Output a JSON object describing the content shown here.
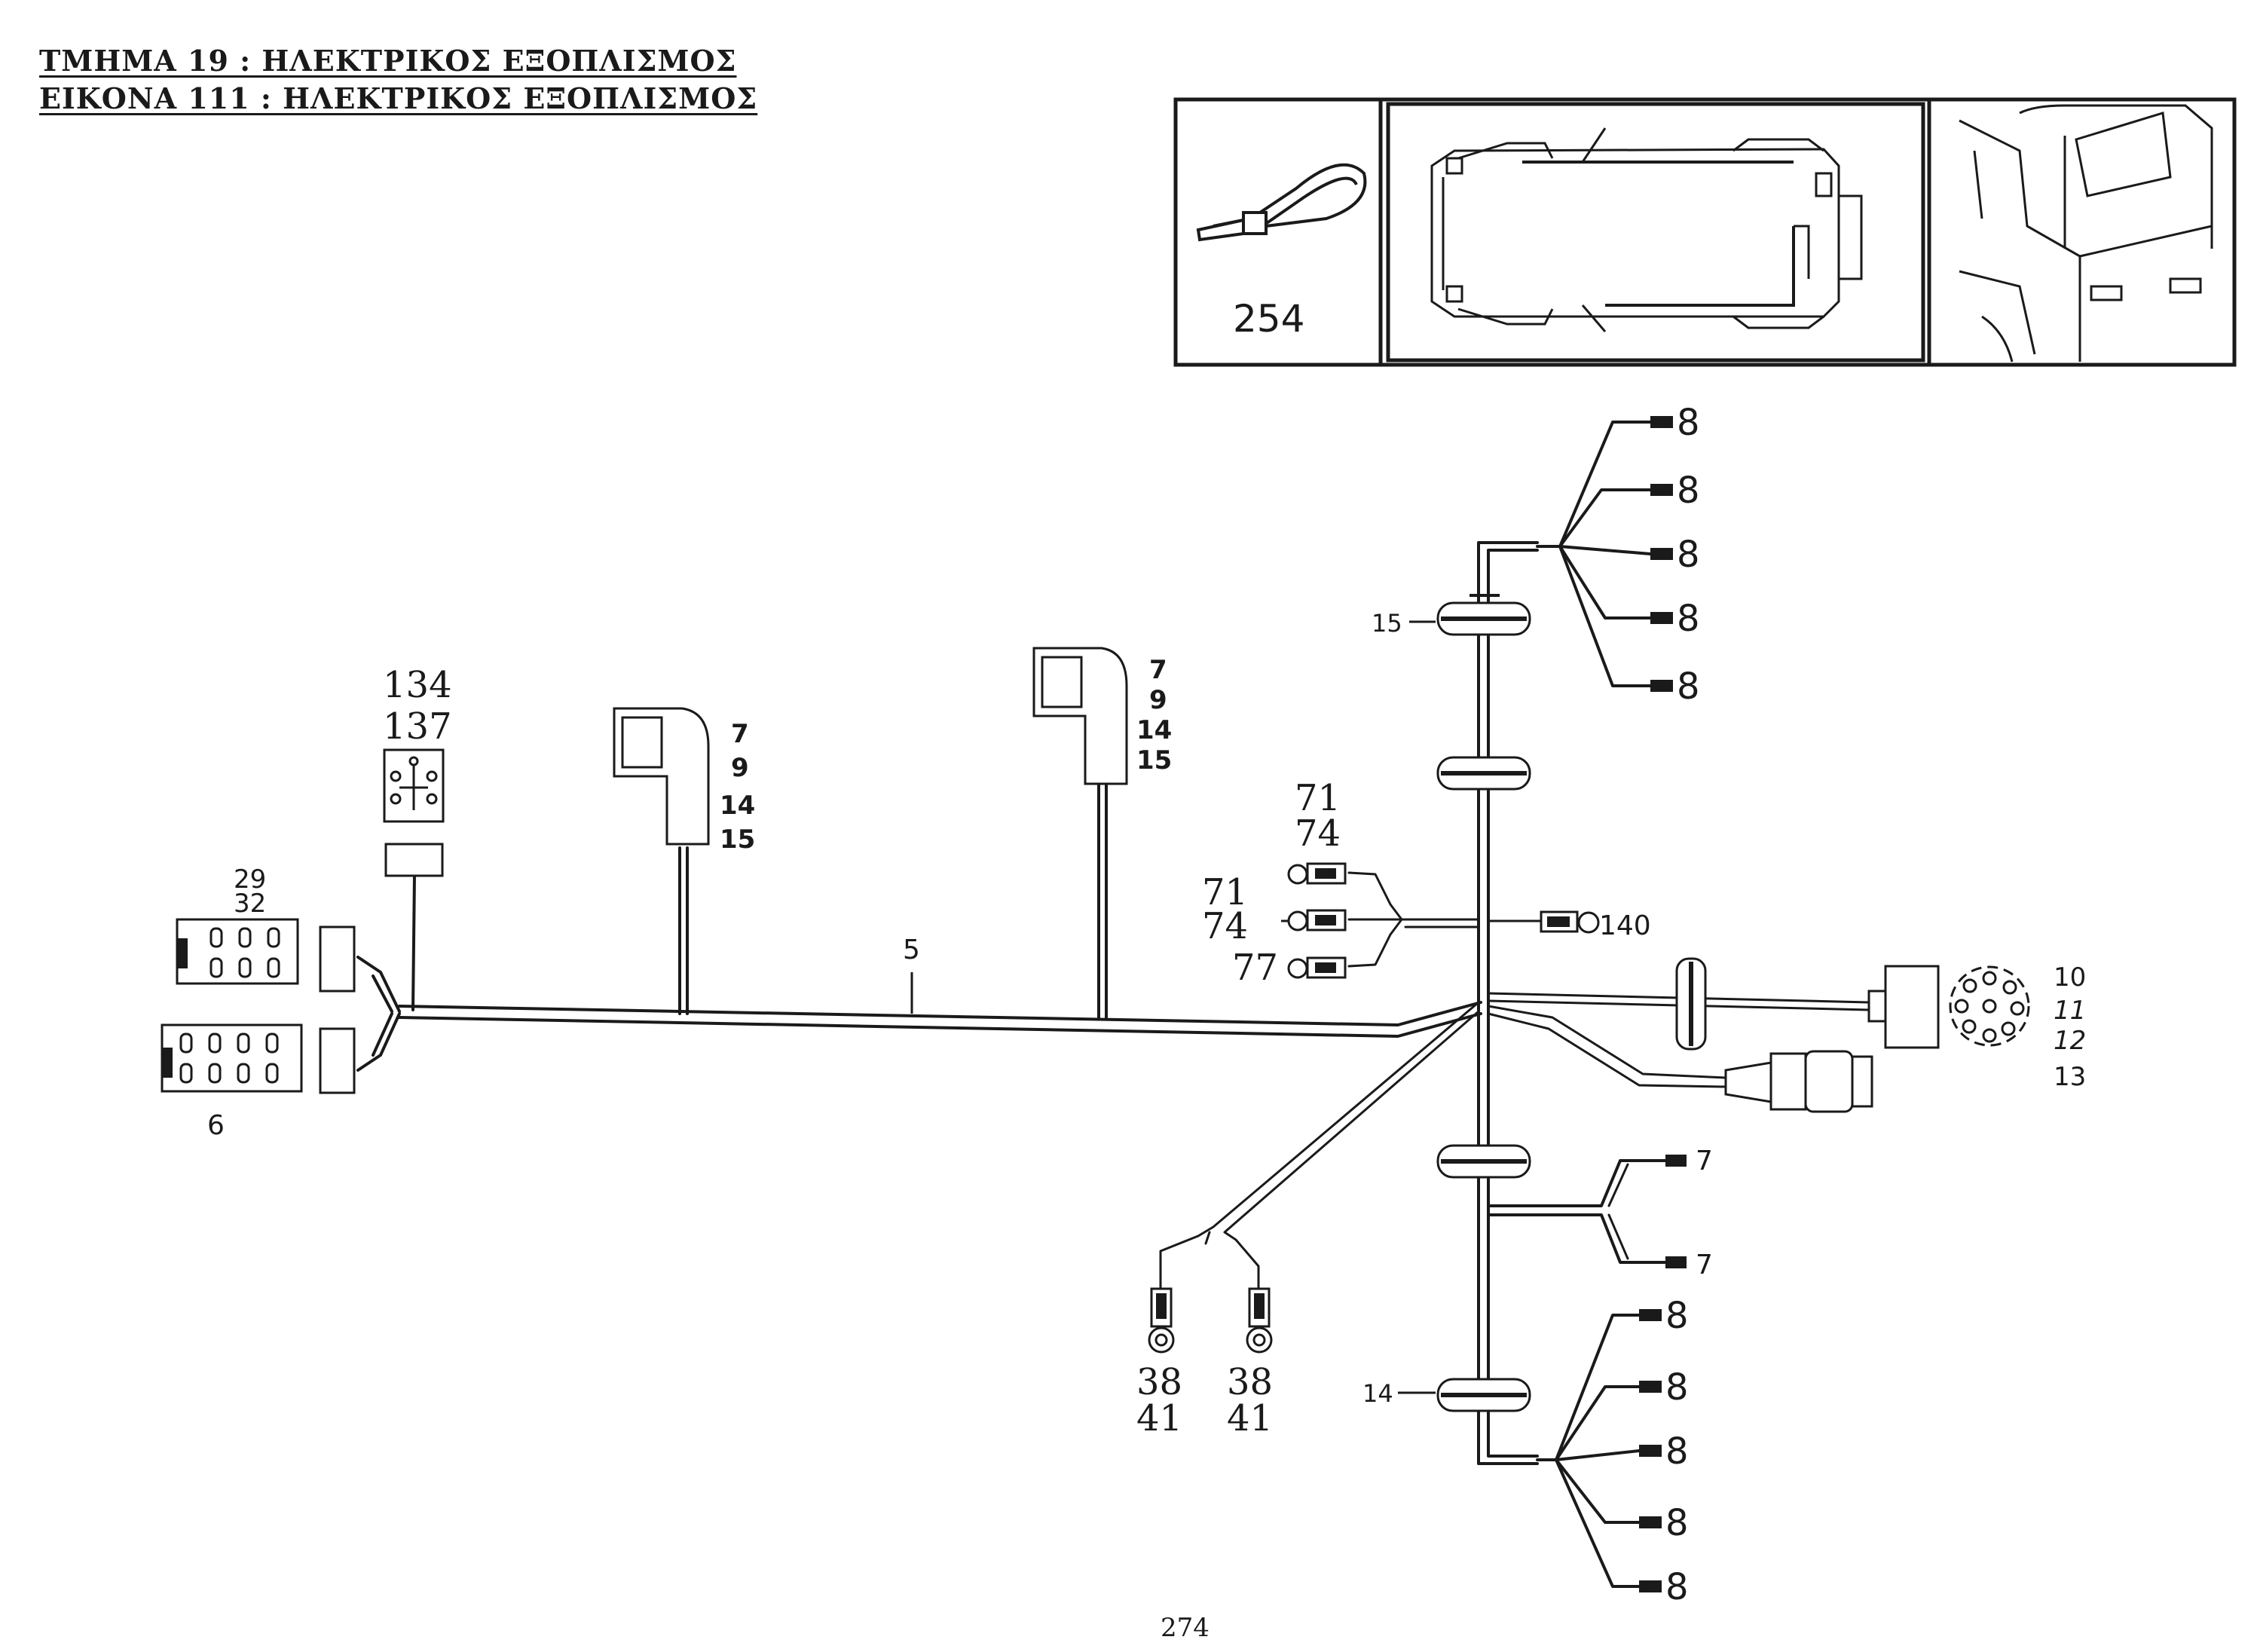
{
  "header": {
    "line1": "ΤΜΗΜΑ   19  : ΗΛΕΚΤΡΙΚΟΣ ΕΞΟΠΛΙΣΜΟΣ",
    "line2": "ΕΙΚΟΝΑ  111 : ΗΛΕΚΤΡΙΚΟΣ ΕΞΟΠΛΙΣΜΟΣ"
  },
  "inset": {
    "cable_tie_label": "254"
  },
  "labels": {
    "l134": "134",
    "l137": "137",
    "l29": "29",
    "l32": "32",
    "l6": "6",
    "l5": "5",
    "conn_a": [
      "7",
      "9",
      "14",
      "15"
    ],
    "conn_b": [
      "7",
      "9",
      "14",
      "15"
    ],
    "top_eights": [
      "8",
      "8",
      "8",
      "8",
      "8"
    ],
    "bottom_eights": [
      "8",
      "8",
      "8",
      "8",
      "8"
    ],
    "grommet_top": "15",
    "grommet_bottom": "14",
    "l71a": "71",
    "l74a": "74",
    "l71b": "71",
    "l74b": "74",
    "l77": "77",
    "l140": "140",
    "socket": [
      "10",
      "11",
      "12",
      "13"
    ],
    "sevens": [
      "7",
      "7"
    ],
    "ground_left": [
      "38",
      "41"
    ],
    "ground_right": [
      "38",
      "41"
    ]
  },
  "footer": {
    "page_number": "274"
  }
}
